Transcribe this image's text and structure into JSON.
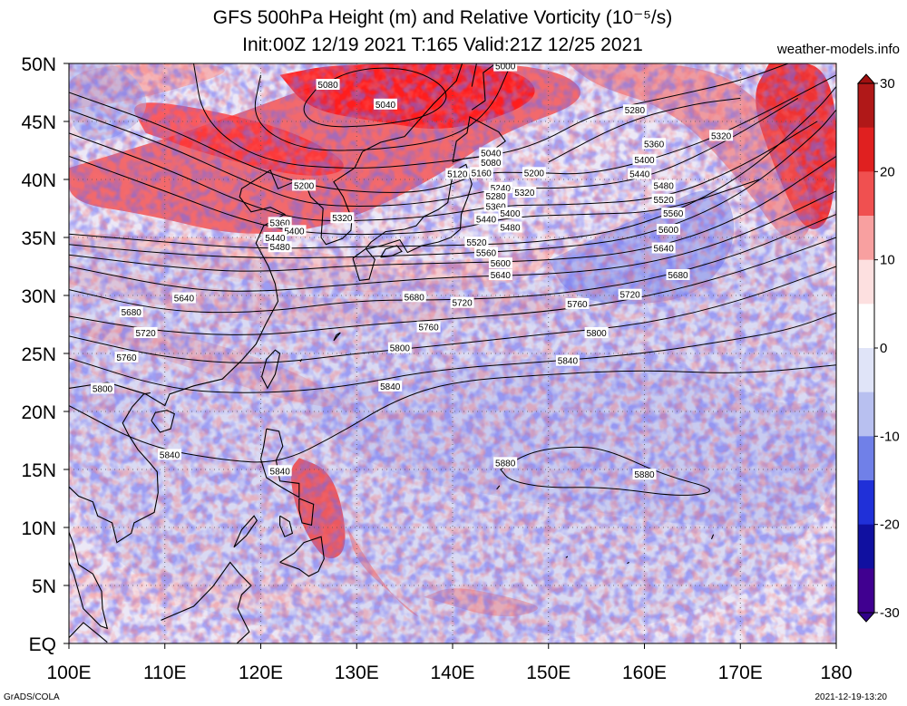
{
  "title_line1": "GFS 500hPa Height (m) and Relative Vorticity (10⁻⁵/s)",
  "title_line2": "Init:00Z 12/19 2021 T:165 Valid:21Z 12/25 2021",
  "credit": "weather-models.info",
  "footer_left": "GrADS/COLA",
  "footer_right": "2021-12-19-13:20",
  "map": {
    "lon_range": [
      100,
      180
    ],
    "lat_range": [
      0,
      50
    ],
    "lat_labels": [
      "50N",
      "45N",
      "40N",
      "35N",
      "30N",
      "25N",
      "20N",
      "15N",
      "10N",
      "5N",
      "EQ"
    ],
    "lon_labels": [
      "100E",
      "110E",
      "120E",
      "130E",
      "140E",
      "150E",
      "160E",
      "170E",
      "180"
    ]
  },
  "colorbar": {
    "labels": [
      "30",
      "20",
      "10",
      "0",
      "-10",
      "-20",
      "-30"
    ],
    "colors": [
      "#b01818",
      "#e02020",
      "#f05050",
      "#f8a0a0",
      "#fde0e0",
      "#ffffff",
      "#e0e4f8",
      "#b8c0f0",
      "#7080e8",
      "#2030d8",
      "#1010a0",
      "#400090"
    ]
  },
  "contours": [
    {
      "label": "5040",
      "lon": 133,
      "lat": 46.5
    },
    {
      "label": "5080",
      "lon": 127,
      "lat": 48.2
    },
    {
      "label": "5000",
      "lon": 145.5,
      "lat": 49.8
    },
    {
      "label": "5040",
      "lon": 144,
      "lat": 42.3
    },
    {
      "label": "5080",
      "lon": 144,
      "lat": 41.5
    },
    {
      "label": "5120",
      "lon": 140.5,
      "lat": 40.5
    },
    {
      "label": "5160",
      "lon": 143,
      "lat": 40.6
    },
    {
      "label": "5200",
      "lon": 148.5,
      "lat": 40.6
    },
    {
      "label": "5200",
      "lon": 124.5,
      "lat": 39.5
    },
    {
      "label": "5240",
      "lon": 145,
      "lat": 39.3
    },
    {
      "label": "5280",
      "lon": 144.5,
      "lat": 38.6
    },
    {
      "label": "5320",
      "lon": 147.5,
      "lat": 38.9
    },
    {
      "label": "5360",
      "lon": 144.5,
      "lat": 37.7
    },
    {
      "label": "5400",
      "lon": 146,
      "lat": 37.1
    },
    {
      "label": "5440",
      "lon": 143.5,
      "lat": 36.6
    },
    {
      "label": "5480",
      "lon": 146,
      "lat": 35.9
    },
    {
      "label": "5320",
      "lon": 128.5,
      "lat": 36.7
    },
    {
      "label": "5360",
      "lon": 122,
      "lat": 36.3
    },
    {
      "label": "5400",
      "lon": 123.5,
      "lat": 35.6
    },
    {
      "label": "5440",
      "lon": 121.5,
      "lat": 35.0
    },
    {
      "label": "5480",
      "lon": 122,
      "lat": 34.2
    },
    {
      "label": "5520",
      "lon": 142.5,
      "lat": 34.6
    },
    {
      "label": "5560",
      "lon": 143.5,
      "lat": 33.7
    },
    {
      "label": "5600",
      "lon": 145,
      "lat": 32.8
    },
    {
      "label": "5640",
      "lon": 145,
      "lat": 31.8
    },
    {
      "label": "5280",
      "lon": 159,
      "lat": 46.0
    },
    {
      "label": "5320",
      "lon": 168,
      "lat": 43.8
    },
    {
      "label": "5360",
      "lon": 161,
      "lat": 43.1
    },
    {
      "label": "5400",
      "lon": 160,
      "lat": 41.7
    },
    {
      "label": "5440",
      "lon": 159.5,
      "lat": 40.5
    },
    {
      "label": "5480",
      "lon": 162,
      "lat": 39.5
    },
    {
      "label": "5520",
      "lon": 162,
      "lat": 38.3
    },
    {
      "label": "5560",
      "lon": 163,
      "lat": 37.1
    },
    {
      "label": "5600",
      "lon": 162.5,
      "lat": 35.7
    },
    {
      "label": "5640",
      "lon": 162,
      "lat": 34.1
    },
    {
      "label": "5680",
      "lon": 163.5,
      "lat": 31.8
    },
    {
      "label": "5720",
      "lon": 158.5,
      "lat": 30.1
    },
    {
      "label": "5640",
      "lon": 112,
      "lat": 29.8
    },
    {
      "label": "5680",
      "lon": 106.5,
      "lat": 28.6
    },
    {
      "label": "5680",
      "lon": 136,
      "lat": 29.9
    },
    {
      "label": "5720",
      "lon": 141,
      "lat": 29.4
    },
    {
      "label": "5760",
      "lon": 153,
      "lat": 29.3
    },
    {
      "label": "5720",
      "lon": 108,
      "lat": 26.8
    },
    {
      "label": "5760",
      "lon": 137.5,
      "lat": 27.3
    },
    {
      "label": "5800",
      "lon": 155,
      "lat": 26.8
    },
    {
      "label": "5760",
      "lon": 106,
      "lat": 24.7
    },
    {
      "label": "5800",
      "lon": 134.5,
      "lat": 25.5
    },
    {
      "label": "5840",
      "lon": 152,
      "lat": 24.4
    },
    {
      "label": "5800",
      "lon": 103.5,
      "lat": 22.0
    },
    {
      "label": "5840",
      "lon": 133.5,
      "lat": 22.2
    },
    {
      "label": "5840",
      "lon": 110.5,
      "lat": 16.3
    },
    {
      "label": "5840",
      "lon": 122,
      "lat": 14.9
    },
    {
      "label": "5880",
      "lon": 145.5,
      "lat": 15.6
    },
    {
      "label": "5880",
      "lon": 160,
      "lat": 14.6
    }
  ]
}
